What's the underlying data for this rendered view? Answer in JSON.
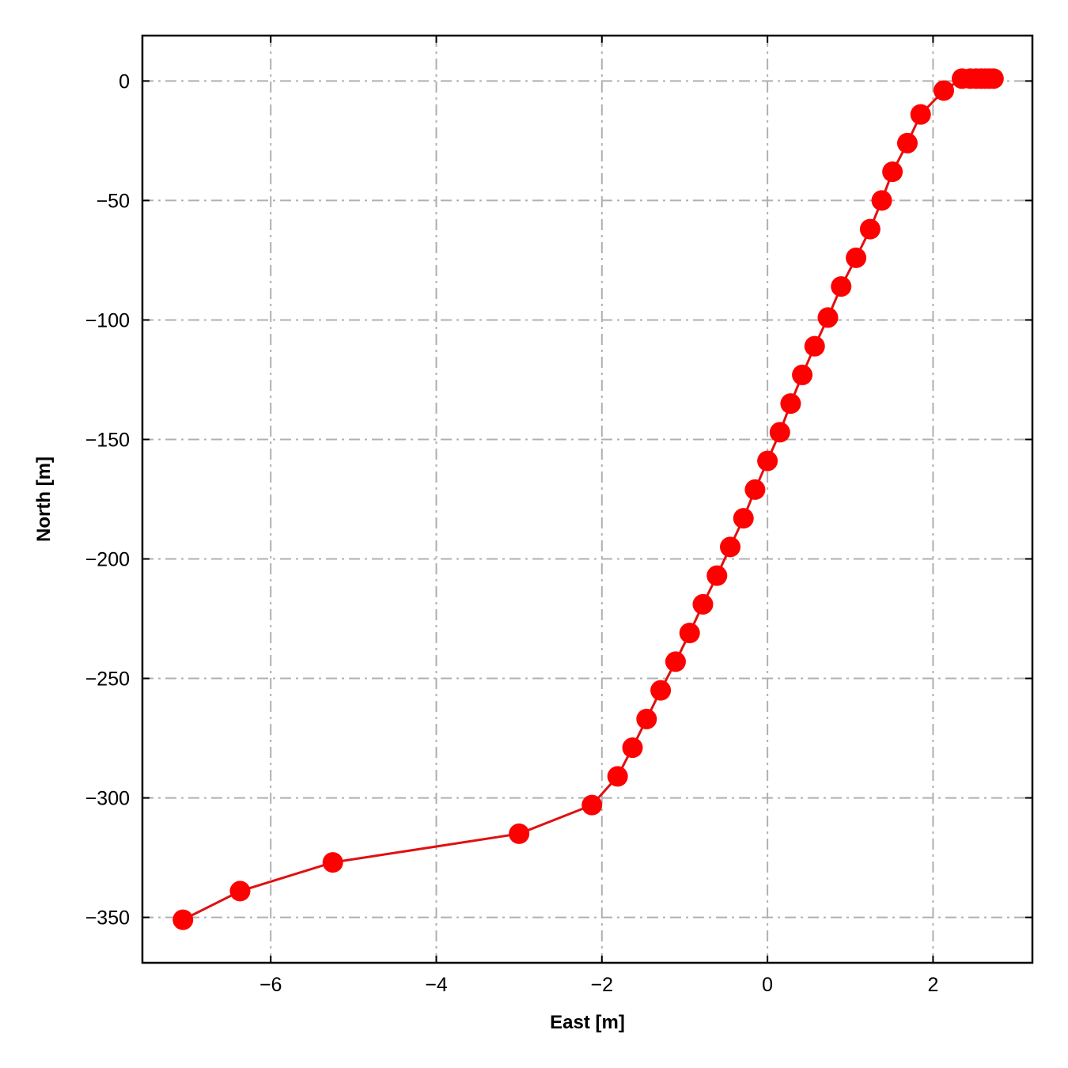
{
  "chart_data": {
    "type": "line",
    "title": "",
    "xlabel": "East [m]",
    "ylabel": "North [m]",
    "xlim": [
      -7.55,
      3.2
    ],
    "ylim": [
      -369,
      19
    ],
    "xticks": [
      -6,
      -4,
      -2,
      0,
      2
    ],
    "yticks": [
      0,
      -50,
      -100,
      -150,
      -200,
      -250,
      -300,
      -350
    ],
    "xtick_labels": [
      "−6",
      "−4",
      "−2",
      "0",
      "2"
    ],
    "ytick_labels": [
      "0",
      "−50",
      "−100",
      "−150",
      "−200",
      "−250",
      "−300",
      "−350"
    ],
    "grid": true,
    "legend": "none",
    "colors": {
      "series": "#ff0000",
      "line": "#e01010",
      "grid": "#b0b0b0",
      "axes": "#000000"
    },
    "series": [
      {
        "x": [
          -7.06,
          -6.37,
          -5.25,
          -3.0,
          -2.12,
          -1.81,
          -1.63,
          -1.46,
          -1.29,
          -1.11,
          -0.94,
          -0.78,
          -0.61,
          -0.45,
          -0.29,
          -0.15,
          0.0,
          0.15,
          0.28,
          0.42,
          0.57,
          0.73,
          0.89,
          1.07,
          1.24,
          1.38,
          1.51,
          1.69,
          1.85,
          2.13,
          2.35,
          2.45,
          2.52,
          2.58,
          2.63,
          2.68,
          2.73
        ],
        "y": [
          -351,
          -339,
          -327,
          -315,
          -303,
          -291,
          -279,
          -267,
          -255,
          -243,
          -231,
          -219,
          -207,
          -195,
          -183,
          -171,
          -159,
          -147,
          -135,
          -123,
          -111,
          -99,
          -86,
          -74,
          -62,
          -50,
          -38,
          -26,
          -14,
          -4,
          1,
          1,
          1,
          1,
          1,
          1,
          1
        ]
      }
    ]
  }
}
